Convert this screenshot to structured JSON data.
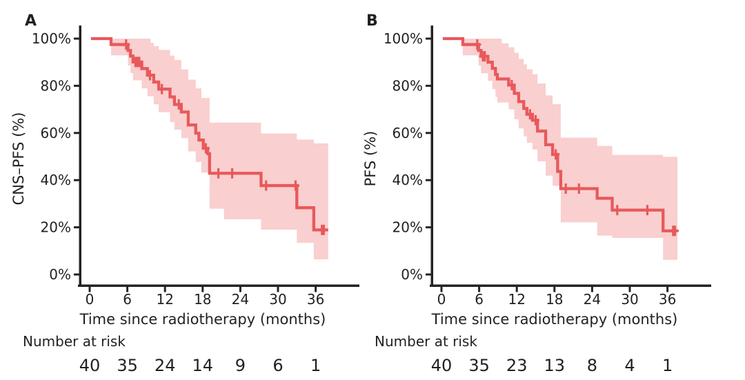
{
  "figure": {
    "background_color": "#ffffff",
    "text_color": "#231f20",
    "axis_color": "#262223"
  },
  "chart_data": [
    {
      "type": "line",
      "subtype": "kaplan-meier-step",
      "panel_label": "A",
      "ylabel": "CNS–PFS (%)",
      "xlabel": "Time since radiotherapy (months)",
      "xlim": [
        0,
        43
      ],
      "ylim": [
        0,
        100
      ],
      "x_ticks": [
        0,
        6,
        12,
        18,
        24,
        30,
        36
      ],
      "y_ticks": [
        100,
        80,
        60,
        40,
        20,
        0
      ],
      "y_tick_labels": [
        "100%",
        "80%",
        "60%",
        "40%",
        "20%",
        "0%"
      ],
      "grid": false,
      "legend": "none",
      "line_color": "#e8595b",
      "band_color": "#f9cfcf",
      "series": {
        "name": "CNS-PFS",
        "steps": [
          [
            0.2,
            100
          ],
          [
            3.4,
            97.5
          ],
          [
            6.1,
            95.0
          ],
          [
            6.5,
            92.6
          ],
          [
            6.9,
            90.1
          ],
          [
            8.3,
            87.3
          ],
          [
            9.2,
            84.5
          ],
          [
            10.2,
            81.6
          ],
          [
            11.0,
            78.6
          ],
          [
            12.8,
            75.3
          ],
          [
            13.5,
            72.1
          ],
          [
            14.6,
            68.9
          ],
          [
            15.7,
            63.4
          ],
          [
            16.9,
            59.9
          ],
          [
            17.4,
            57.0
          ],
          [
            18.1,
            53.5
          ],
          [
            18.8,
            51.2
          ],
          [
            19.1,
            42.9
          ],
          [
            27.3,
            37.7
          ],
          [
            33.0,
            28.3
          ],
          [
            35.7,
            18.9
          ]
        ],
        "end_time": 38.0,
        "censor_marks": [
          [
            5.8,
            97.5
          ],
          [
            7.3,
            90.1
          ],
          [
            7.6,
            90.1
          ],
          [
            7.9,
            90.1
          ],
          [
            9.6,
            84.5
          ],
          [
            11.5,
            78.6
          ],
          [
            14.2,
            72.1
          ],
          [
            18.5,
            53.5
          ],
          [
            20.5,
            42.9
          ],
          [
            22.7,
            42.9
          ],
          [
            28.1,
            37.7
          ],
          [
            32.8,
            37.7
          ],
          [
            37.0,
            18.9
          ],
          [
            37.3,
            18.9
          ]
        ],
        "ci_band": [
          [
            3.4,
            92.9,
            100
          ],
          [
            6.1,
            88.6,
            100
          ],
          [
            6.5,
            85.4,
            100
          ],
          [
            6.9,
            82.3,
            100
          ],
          [
            8.3,
            78.9,
            100
          ],
          [
            9.2,
            75.6,
            100
          ],
          [
            9.7,
            75.6,
            98.2
          ],
          [
            10.2,
            72.2,
            96.8
          ],
          [
            11.0,
            68.8,
            95.2
          ],
          [
            12.8,
            64.6,
            92.8
          ],
          [
            13.5,
            61.4,
            90.9
          ],
          [
            14.6,
            57.8,
            86.9
          ],
          [
            15.7,
            52.2,
            82.6
          ],
          [
            16.9,
            47.7,
            78.9
          ],
          [
            17.8,
            43.2,
            74.8
          ],
          [
            19.1,
            27.9,
            64.4
          ],
          [
            21.4,
            23.4,
            64.4
          ],
          [
            27.3,
            19.0,
            59.8
          ],
          [
            33.0,
            13.4,
            57.2
          ],
          [
            35.7,
            6.4,
            55.6
          ]
        ]
      },
      "number_at_risk": {
        "label": "Number at risk",
        "times": [
          0,
          6,
          12,
          18,
          24,
          30,
          36
        ],
        "values": [
          40,
          35,
          24,
          14,
          9,
          6,
          1
        ]
      }
    },
    {
      "type": "line",
      "subtype": "kaplan-meier-step",
      "panel_label": "B",
      "ylabel": "PFS (%)",
      "xlabel": "Time since radiotherapy (months)",
      "xlim": [
        0,
        43
      ],
      "ylim": [
        0,
        100
      ],
      "x_ticks": [
        0,
        6,
        12,
        18,
        24,
        30,
        36
      ],
      "y_ticks": [
        100,
        80,
        60,
        40,
        20,
        0
      ],
      "y_tick_labels": [
        "100%",
        "80%",
        "60%",
        "40%",
        "20%",
        "0%"
      ],
      "grid": false,
      "legend": "none",
      "line_color": "#e8595b",
      "band_color": "#f9cfcf",
      "series": {
        "name": "PFS",
        "steps": [
          [
            0.2,
            100
          ],
          [
            3.4,
            97.5
          ],
          [
            5.9,
            95.0
          ],
          [
            6.3,
            92.5
          ],
          [
            7.4,
            90.0
          ],
          [
            8.1,
            87.4
          ],
          [
            8.6,
            84.8
          ],
          [
            8.9,
            82.9
          ],
          [
            10.7,
            80.3
          ],
          [
            11.6,
            76.8
          ],
          [
            12.3,
            73.3
          ],
          [
            13.1,
            70.4
          ],
          [
            13.6,
            67.9
          ],
          [
            14.5,
            65.4
          ],
          [
            15.3,
            60.8
          ],
          [
            16.6,
            55.0
          ],
          [
            17.7,
            50.9
          ],
          [
            18.5,
            43.7
          ],
          [
            19.0,
            36.4
          ],
          [
            24.8,
            32.3
          ],
          [
            27.2,
            27.3
          ],
          [
            35.3,
            18.5
          ]
        ],
        "end_time": 37.6,
        "censor_marks": [
          [
            5.7,
            97.5
          ],
          [
            6.6,
            92.5
          ],
          [
            6.9,
            92.5
          ],
          [
            11.2,
            80.3
          ],
          [
            14.1,
            67.9
          ],
          [
            15.0,
            65.4
          ],
          [
            18.2,
            50.9
          ],
          [
            19.8,
            36.4
          ],
          [
            21.9,
            36.4
          ],
          [
            28.0,
            27.3
          ],
          [
            32.8,
            27.3
          ],
          [
            36.9,
            18.5
          ],
          [
            37.2,
            18.5
          ]
        ],
        "ci_band": [
          [
            3.4,
            92.9,
            100
          ],
          [
            5.9,
            88.6,
            100
          ],
          [
            6.3,
            85.3,
            100
          ],
          [
            7.4,
            82.1,
            100
          ],
          [
            8.1,
            78.6,
            100
          ],
          [
            8.6,
            75.3,
            100
          ],
          [
            8.9,
            72.9,
            100
          ],
          [
            9.6,
            72.9,
            98.0
          ],
          [
            10.7,
            70.0,
            96.3
          ],
          [
            11.6,
            65.8,
            94.0
          ],
          [
            12.3,
            61.9,
            91.4
          ],
          [
            13.1,
            58.6,
            89.1
          ],
          [
            13.6,
            55.8,
            87.0
          ],
          [
            14.5,
            53.0,
            84.9
          ],
          [
            15.3,
            48.0,
            81.0
          ],
          [
            16.6,
            41.9,
            75.9
          ],
          [
            17.7,
            37.6,
            72.2
          ],
          [
            19.0,
            22.1,
            58.0
          ],
          [
            24.8,
            16.5,
            54.5
          ],
          [
            27.2,
            15.5,
            50.7
          ],
          [
            35.3,
            6.2,
            49.9
          ]
        ]
      },
      "number_at_risk": {
        "label": "Number at risk",
        "times": [
          0,
          6,
          12,
          18,
          24,
          30,
          36
        ],
        "values": [
          40,
          35,
          23,
          13,
          8,
          4,
          1
        ]
      }
    }
  ]
}
